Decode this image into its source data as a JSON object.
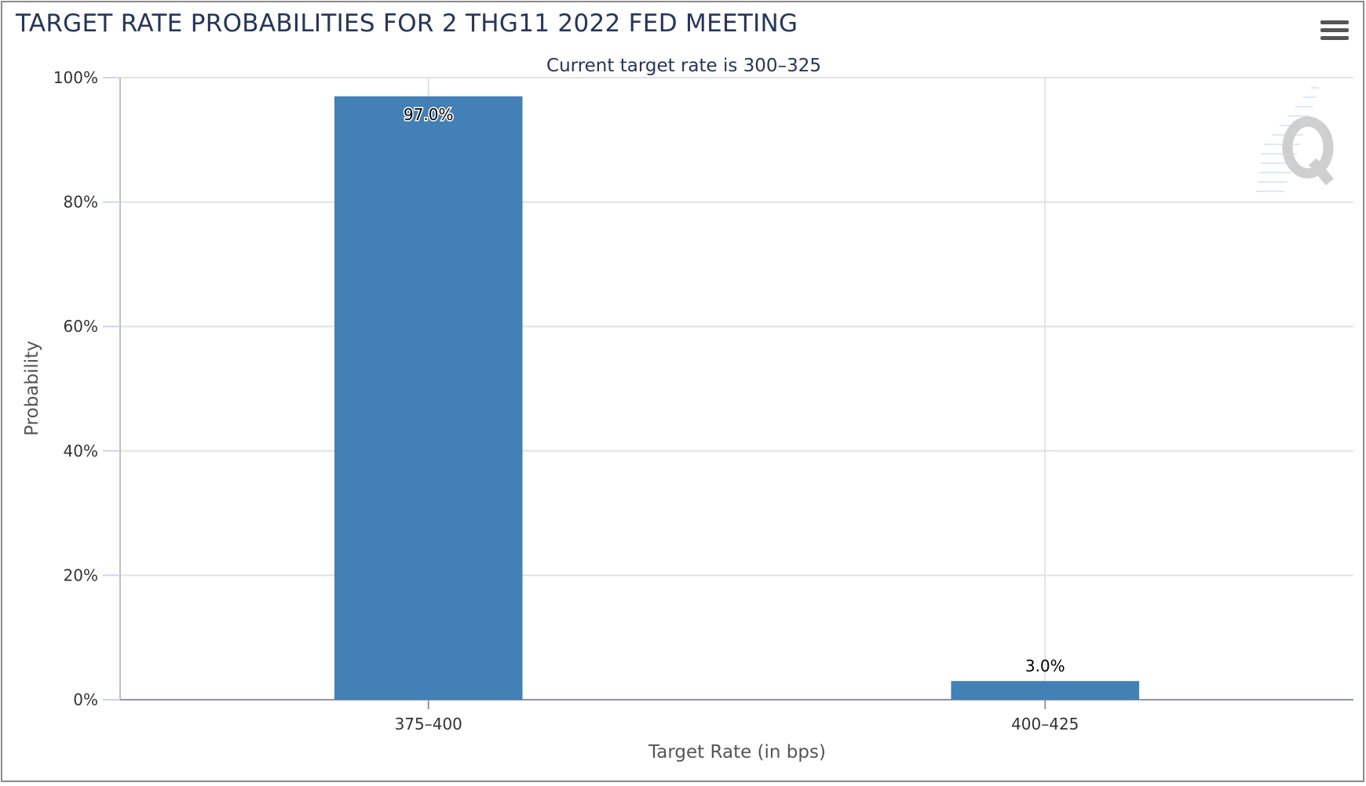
{
  "header": {
    "title": "TARGET RATE PROBABILITIES FOR 2 THG11 2022 FED MEETING",
    "menu_icon": "hamburger-menu-icon"
  },
  "chart_data": {
    "type": "bar",
    "title": "TARGET RATE PROBABILITIES FOR 2 THG11 2022 FED MEETING",
    "subtitle": "Current target rate is 300–325",
    "categories": [
      "375–400",
      "400–425"
    ],
    "values": [
      97.0,
      3.0
    ],
    "data_labels": [
      "97.0%",
      "3.0%"
    ],
    "xlabel": "Target Rate (in bps)",
    "ylabel": "Probability",
    "ylim": [
      0,
      100
    ],
    "yticks": [
      0,
      20,
      40,
      60,
      80,
      100
    ],
    "ytick_labels": [
      "0%",
      "20%",
      "40%",
      "60%",
      "80%",
      "100%"
    ],
    "grid": true,
    "bar_color": "#4380b5",
    "watermark_icon": "q-logo-icon"
  }
}
